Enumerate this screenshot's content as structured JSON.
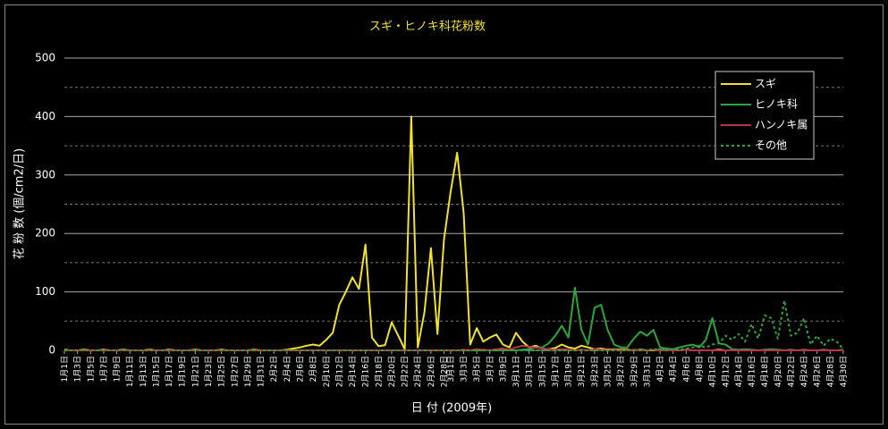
{
  "chart_data": {
    "type": "line",
    "title": "スギ・ヒノキ科花粉数",
    "y_label": "花 粉 数 (個/cm2/日)",
    "x_label": "日 付 (2009年)",
    "categories": [
      "1月1日",
      null,
      "1月3日",
      null,
      "1月5日",
      null,
      "1月7日",
      null,
      "1月9日",
      null,
      "1月11日",
      null,
      "1月13日",
      null,
      "1月15日",
      null,
      "1月17日",
      null,
      "1月19日",
      null,
      "1月21日",
      null,
      "1月23日",
      null,
      "1月25日",
      null,
      "1月27日",
      null,
      "1月29日",
      null,
      "1月31日",
      null,
      "2月2日",
      null,
      "2月4日",
      null,
      "2月6日",
      null,
      "2月8日",
      null,
      "2月10日",
      null,
      "2月12日",
      null,
      "2月14日",
      null,
      "2月16日",
      null,
      "2月18日",
      null,
      "2月20日",
      null,
      "2月22日",
      null,
      "2月24日",
      null,
      "2月26日",
      null,
      "2月28日",
      "3月1日",
      null,
      "3月3日",
      null,
      "3月5日",
      null,
      "3月7日",
      null,
      "3月9日",
      null,
      "3月11日",
      null,
      "3月13日",
      null,
      "3月15日",
      null,
      "3月17日",
      null,
      "3月19日",
      null,
      "3月21日",
      null,
      "3月23日",
      null,
      "3月25日",
      null,
      "3月27日",
      null,
      "3月29日",
      null,
      "3月31日",
      null,
      "4月2日",
      null,
      "4月4日",
      null,
      "4月6日",
      null,
      "4月8日",
      null,
      "4月10日",
      null,
      "4月12日",
      null,
      "4月14日",
      null,
      "4月16日",
      null,
      "4月18日",
      null,
      "4月20日",
      null,
      "4月22日",
      null,
      "4月24日",
      null,
      "4月26日",
      null,
      "4月28日",
      null,
      "4月30日"
    ],
    "series": [
      {
        "name": "スギ",
        "color": "#f2e22c",
        "dashed": false,
        "values": [
          1,
          0,
          0,
          1,
          0,
          0,
          1,
          0,
          0,
          1,
          0,
          0,
          0,
          1,
          0,
          0,
          1,
          0,
          0,
          0,
          1,
          0,
          0,
          0,
          1,
          0,
          0,
          0,
          0,
          1,
          0,
          0,
          0,
          0,
          1,
          3,
          5,
          8,
          10,
          8,
          18,
          30,
          78,
          100,
          125,
          105,
          181,
          22,
          7,
          9,
          48,
          25,
          2,
          400,
          5,
          65,
          175,
          28,
          190,
          270,
          338,
          235,
          10,
          38,
          15,
          22,
          27,
          10,
          5,
          30,
          15,
          5,
          8,
          3,
          2,
          4,
          10,
          5,
          3,
          8,
          5,
          2,
          3,
          1,
          2,
          1,
          1,
          0,
          1,
          0,
          0,
          1,
          0,
          0,
          0,
          1,
          0,
          0,
          0,
          0,
          1,
          0,
          0,
          0,
          0,
          0,
          0,
          0,
          0,
          0,
          0,
          0,
          0,
          0,
          0,
          0,
          0,
          0,
          0,
          0
        ]
      },
      {
        "name": "ヒノキ科",
        "color": "#2aa83a",
        "dashed": false,
        "values": [
          0,
          0,
          0,
          0,
          0,
          0,
          0,
          0,
          0,
          0,
          0,
          0,
          0,
          0,
          0,
          0,
          0,
          0,
          0,
          0,
          0,
          0,
          0,
          0,
          0,
          0,
          0,
          0,
          0,
          0,
          0,
          0,
          0,
          0,
          0,
          0,
          0,
          0,
          0,
          0,
          0,
          0,
          0,
          0,
          0,
          0,
          0,
          0,
          0,
          0,
          0,
          0,
          0,
          0,
          0,
          0,
          0,
          0,
          0,
          0,
          0,
          0,
          0,
          0,
          0,
          0,
          0,
          0,
          0,
          0,
          1,
          2,
          5,
          5,
          12,
          25,
          42,
          22,
          107,
          35,
          10,
          73,
          78,
          35,
          10,
          5,
          5,
          20,
          32,
          25,
          35,
          5,
          3,
          2,
          5,
          8,
          10,
          5,
          18,
          55,
          12,
          10,
          2,
          1,
          2,
          1,
          0,
          1,
          2,
          1,
          0,
          1,
          0,
          1,
          0,
          0,
          1,
          0,
          0,
          1
        ]
      },
      {
        "name": "ハンノキ属",
        "color": "#c0304a",
        "dashed": false,
        "values": [
          0,
          0,
          0,
          0,
          0,
          0,
          0,
          0,
          0,
          0,
          0,
          0,
          0,
          0,
          0,
          0,
          0,
          0,
          0,
          0,
          0,
          0,
          0,
          0,
          0,
          0,
          0,
          0,
          0,
          0,
          0,
          0,
          0,
          0,
          0,
          0,
          0,
          0,
          0,
          0,
          0,
          0,
          0,
          0,
          0,
          0,
          0,
          0,
          0,
          0,
          0,
          0,
          0,
          0,
          0,
          0,
          0,
          0,
          0,
          0,
          0,
          1,
          0,
          2,
          1,
          0,
          2,
          3,
          1,
          5,
          8,
          6,
          5,
          3,
          2,
          1,
          2,
          1,
          0,
          1,
          0,
          2,
          1,
          0,
          1,
          0,
          0,
          1,
          0,
          0,
          1,
          0,
          0,
          0,
          0,
          1,
          0,
          0,
          0,
          0,
          0,
          0,
          0,
          0,
          0,
          0,
          0,
          0,
          0,
          0,
          0,
          0,
          0,
          0,
          0,
          0,
          0,
          0,
          0,
          0
        ]
      },
      {
        "name": "その他",
        "color": "#2aa83a",
        "dashed": true,
        "values": [
          0,
          0,
          0,
          0,
          0,
          0,
          0,
          0,
          0,
          0,
          0,
          0,
          0,
          0,
          0,
          0,
          0,
          0,
          0,
          0,
          0,
          0,
          0,
          0,
          0,
          0,
          0,
          0,
          0,
          0,
          0,
          0,
          0,
          0,
          0,
          0,
          0,
          0,
          0,
          0,
          0,
          0,
          0,
          0,
          0,
          0,
          0,
          0,
          0,
          0,
          0,
          0,
          0,
          0,
          0,
          0,
          0,
          0,
          0,
          0,
          0,
          0,
          0,
          0,
          0,
          0,
          0,
          0,
          0,
          0,
          0,
          0,
          0,
          0,
          0,
          0,
          0,
          0,
          0,
          0,
          0,
          0,
          0,
          0,
          0,
          0,
          0,
          0,
          0,
          0,
          2,
          1,
          0,
          2,
          1,
          3,
          5,
          8,
          5,
          10,
          12,
          25,
          18,
          28,
          15,
          45,
          20,
          60,
          55,
          20,
          85,
          25,
          30,
          55,
          10,
          25,
          8,
          20,
          15,
          2
        ]
      }
    ],
    "ylim": [
      0,
      500
    ],
    "yticks": [
      0,
      100,
      200,
      300,
      400,
      500
    ],
    "grid": true,
    "legend": "top-right"
  }
}
